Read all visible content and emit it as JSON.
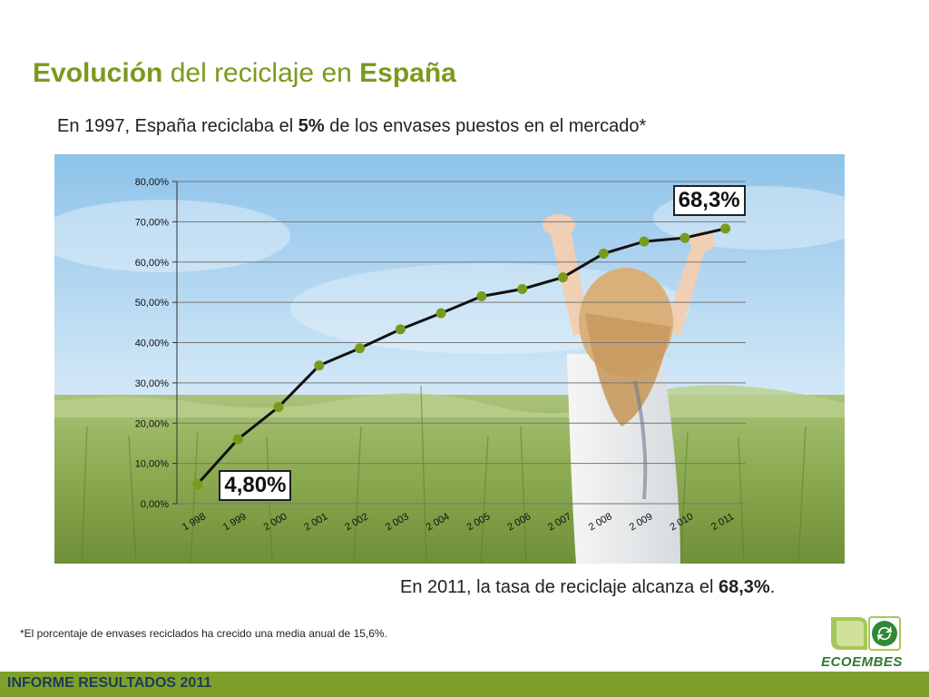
{
  "slide": {
    "title_bold1": "Evolución",
    "title_mid": " del reciclaje en ",
    "title_bold2": "España",
    "subtitle_pre": "En 1997, España reciclaba el ",
    "subtitle_bold": "5%",
    "subtitle_post": " de los envases puestos en el mercado*",
    "conclusion_pre": "En 2011, la tasa de reciclaje alcanza el ",
    "conclusion_bold": "68,3%",
    "conclusion_post": ".",
    "footnote": "*El porcentaje de envases reciclados ha crecido una media anual de 15,6%.",
    "footer": "INFORME RESULTADOS 2011",
    "logo_text": "ECOEMBES",
    "logo_icon": "recycle-icon",
    "accent_color": "#7a9a1c",
    "footer_color": "#7ea02a",
    "marker_color": "#7a9a1c"
  },
  "chart_data": {
    "type": "line",
    "x": [
      "1 998",
      "1 999",
      "2 000",
      "2 001",
      "2 002",
      "2 003",
      "2 004",
      "2 005",
      "2 006",
      "2 007",
      "2 008",
      "2 009",
      "2 010",
      "2 011"
    ],
    "values": [
      4.8,
      16,
      24,
      34.3,
      38.6,
      43.3,
      47.3,
      51.5,
      53.3,
      56.2,
      62.1,
      65.1,
      66,
      68.3
    ],
    "ylim": [
      0,
      80
    ],
    "yticks": [
      "0,00%",
      "10,00%",
      "20,00%",
      "30,00%",
      "40,00%",
      "50,00%",
      "60,00%",
      "70,00%",
      "80,00%"
    ],
    "grid": true,
    "annotations": [
      {
        "text": "4,80%",
        "index": 0
      },
      {
        "text": "68,3%",
        "index": 13
      }
    ],
    "title": "",
    "xlabel": "",
    "ylabel": ""
  }
}
